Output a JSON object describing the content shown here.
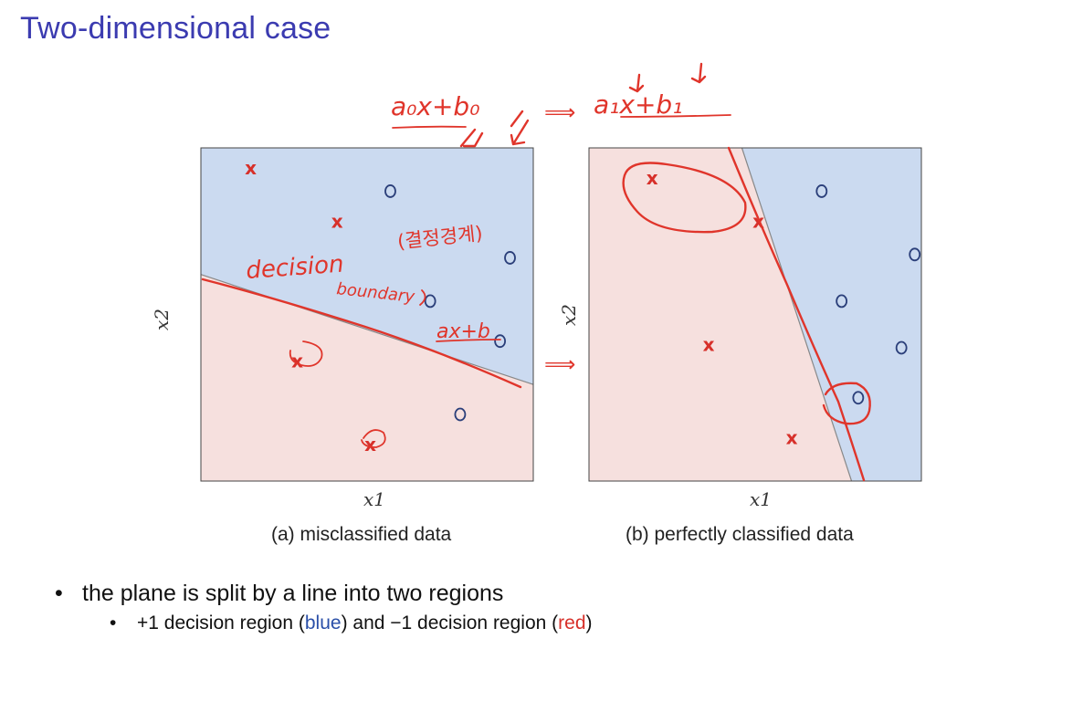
{
  "slide": {
    "title": "Two-dimensional case"
  },
  "figures": [
    {
      "caption": "(a) misclassified data",
      "xlabel": "x1",
      "ylabel": "x2",
      "colors": {
        "positive_region": "#cbdaf0",
        "negative_region": "#f6e0de",
        "boundary": "#888888"
      }
    },
    {
      "caption": "(b) perfectly classified data",
      "xlabel": "x1",
      "ylabel": "x2",
      "colors": {
        "positive_region": "#cbdaf0",
        "negative_region": "#f6e0de",
        "boundary": "#888888"
      }
    }
  ],
  "chart_data": [
    {
      "type": "scatter",
      "title": "",
      "xlabel": "x1",
      "ylabel": "x2",
      "grid": false,
      "regions": [
        "+1 (blue)",
        "-1 (red)"
      ],
      "series": [
        {
          "marker": "x",
          "points": [
            [
              0.15,
              0.94
            ],
            [
              0.41,
              0.78
            ],
            [
              0.29,
              0.36
            ],
            [
              0.51,
              0.11
            ]
          ]
        },
        {
          "marker": "o",
          "points": [
            [
              0.57,
              0.87
            ],
            [
              0.93,
              0.67
            ],
            [
              0.69,
              0.54
            ],
            [
              0.9,
              0.42
            ],
            [
              0.78,
              0.2
            ]
          ]
        }
      ],
      "boundary": {
        "x": [
          0.0,
          1.0
        ],
        "y": [
          0.62,
          0.29
        ]
      }
    },
    {
      "type": "scatter",
      "title": "",
      "xlabel": "x1",
      "ylabel": "x2",
      "grid": false,
      "regions": [
        "+1 (blue)",
        "-1 (red)"
      ],
      "series": [
        {
          "marker": "x",
          "points": [
            [
              0.19,
              0.91
            ],
            [
              0.51,
              0.78
            ],
            [
              0.36,
              0.41
            ],
            [
              0.61,
              0.13
            ]
          ]
        },
        {
          "marker": "o",
          "points": [
            [
              0.7,
              0.87
            ],
            [
              0.98,
              0.68
            ],
            [
              0.76,
              0.54
            ],
            [
              0.94,
              0.4
            ],
            [
              0.81,
              0.25
            ]
          ]
        }
      ],
      "boundary": {
        "x": [
          0.46,
          0.79
        ],
        "y": [
          1.0,
          0.0
        ]
      }
    }
  ],
  "annotations": {
    "top_formula_left": "a₀x+b₀",
    "top_arrow": "⟹",
    "top_formula_right": "a₁x+b₁",
    "decision": "decision",
    "boundary_word": "boundary",
    "korean_note": "(결정경계)",
    "line_formula": "ax+b",
    "mid_arrow": "⟹"
  },
  "bullets": {
    "level1": "the plane is split by a line into two regions",
    "level2": {
      "prefix": "+1 decision region (",
      "blue": "blue",
      "middle": ") and −1 decision region (",
      "red": "red",
      "suffix": ")"
    }
  }
}
